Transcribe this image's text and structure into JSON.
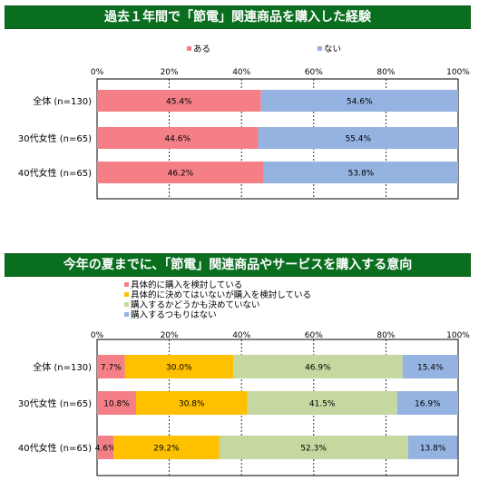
{
  "chart_data": [
    {
      "type": "bar",
      "orientation": "horizontal",
      "stacked": true,
      "title": "過去１年間で「節電」関連商品を購入した経験",
      "categories": [
        "全体 (n=130)",
        "30代女性 (n=65)",
        "40代女性 (n=65)"
      ],
      "series": [
        {
          "name": "ある",
          "color": "#f47f87",
          "values": [
            45.4,
            44.6,
            46.2
          ],
          "labels": [
            "45.4%",
            "44.6%",
            "46.2%"
          ]
        },
        {
          "name": "ない",
          "color": "#94b3e0",
          "values": [
            54.6,
            55.4,
            53.8
          ],
          "labels": [
            "54.6%",
            "55.4%",
            "53.8%"
          ]
        }
      ],
      "xlim": [
        0,
        100
      ],
      "x_ticks": [
        "0%",
        "20%",
        "40%",
        "60%",
        "80%",
        "100%"
      ],
      "grid": true,
      "legend_position": "top"
    },
    {
      "type": "bar",
      "orientation": "horizontal",
      "stacked": true,
      "title": "今年の夏までに、「節電」関連商品やサービスを購入する意向",
      "categories": [
        "全体 (n=130)",
        "30代女性 (n=65)",
        "40代女性 (n=65)"
      ],
      "series": [
        {
          "name": "具体的に購入を検討している",
          "color": "#f47f87",
          "values": [
            7.7,
            10.8,
            4.6
          ],
          "labels": [
            "7.7%",
            "10.8%",
            "4.6%"
          ]
        },
        {
          "name": "具体的に決めてはいないが購入を検討している",
          "color": "#ffc000",
          "values": [
            30.0,
            30.8,
            29.2
          ],
          "labels": [
            "30.0%",
            "30.8%",
            "29.2%"
          ]
        },
        {
          "name": "購入するかどうかも決めていない",
          "color": "#c4d8a0",
          "values": [
            46.9,
            41.5,
            52.3
          ],
          "labels": [
            "46.9%",
            "41.5%",
            "52.3%"
          ]
        },
        {
          "name": "購入するつもりはない",
          "color": "#94b3e0",
          "values": [
            15.4,
            16.9,
            13.8
          ],
          "labels": [
            "15.4%",
            "16.9%",
            "13.8%"
          ]
        }
      ],
      "xlim": [
        0,
        100
      ],
      "x_ticks": [
        "0%",
        "20%",
        "40%",
        "60%",
        "80%",
        "100%"
      ],
      "grid": true,
      "legend_position": "top-left"
    }
  ]
}
